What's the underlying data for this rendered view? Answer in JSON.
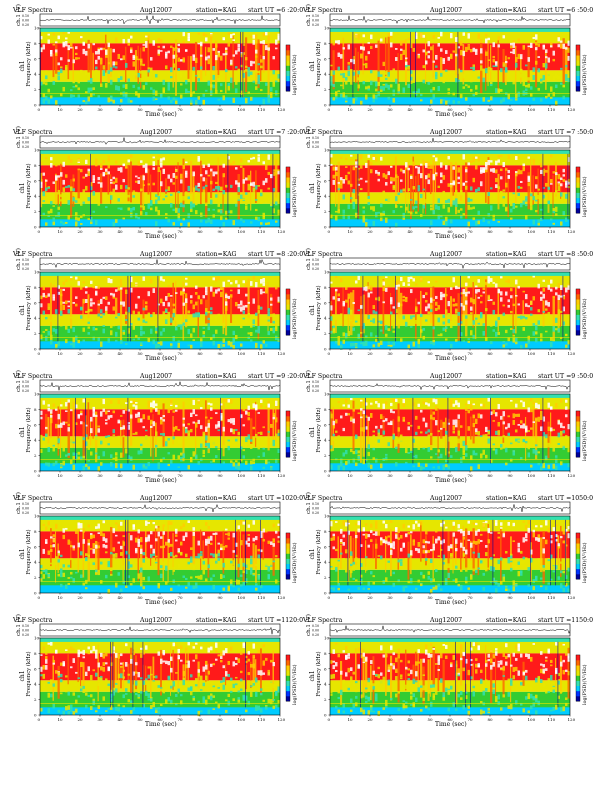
{
  "page": {
    "panels": [
      {
        "header": {
          "title": "VLF Spectra",
          "date": "Aug12007",
          "station": "station=KAG",
          "start": "start  UT  =6 :20:0"
        },
        "variant": 1
      },
      {
        "header": {
          "title": "VLF Spectra",
          "date": "Aug12007",
          "station": "station=KAG",
          "start": "start  UT  =6 :50:0"
        },
        "variant": 2
      },
      {
        "header": {
          "title": "VLF Spectra",
          "date": "Aug12007",
          "station": "station=KAG",
          "start": "start  UT  =7 :20:0"
        },
        "variant": 3
      },
      {
        "header": {
          "title": "VLF Spectra",
          "date": "Aug12007",
          "station": "station=KAG",
          "start": "start  UT  =7 :50:0"
        },
        "variant": 4
      },
      {
        "header": {
          "title": "VLF Spectra",
          "date": "Aug12007",
          "station": "station=KAG",
          "start": "start  UT  =8 :20:0"
        },
        "variant": 5
      },
      {
        "header": {
          "title": "VLF Spectra",
          "date": "Aug12007",
          "station": "station=KAG",
          "start": "start  UT  =8 :50:0"
        },
        "variant": 6
      },
      {
        "header": {
          "title": "VLF Spectra",
          "date": "Aug12007",
          "station": "station=KAG",
          "start": "start  UT  =9 :20:0"
        },
        "variant": 7
      },
      {
        "header": {
          "title": "VLF Spectra",
          "date": "Aug12007",
          "station": "station=KAG",
          "start": "start  UT  =9 :50:0"
        },
        "variant": 8
      },
      {
        "header": {
          "title": "VLF Spectra",
          "date": "Aug12007",
          "station": "station=KAG",
          "start": "start  UT  =1020:0"
        },
        "variant": 9
      },
      {
        "header": {
          "title": "VLF Spectra",
          "date": "Aug12007",
          "station": "station=KAG",
          "start": "start  UT  =1050:0"
        },
        "variant": 10
      },
      {
        "header": {
          "title": "VLF Spectra",
          "date": "Aug12007",
          "station": "station=KAG",
          "start": "start  UT  =1120:0"
        },
        "variant": 11
      },
      {
        "header": {
          "title": "VLF Spectra",
          "date": "Aug12007",
          "station": "station=KAG",
          "start": "start  UT  =1150:0"
        },
        "variant": 12
      }
    ],
    "labels": {
      "ch1_axis": "ch.1 (V)",
      "freq_axis_top": "ch1",
      "freq_axis": "Frequency  (kHz)",
      "time_axis": "Time  (sec)",
      "colorbar": "log(PSD)(V²/Hz)"
    },
    "colors": {
      "scale": [
        "#000099",
        "#0033ff",
        "#00ccff",
        "#33e0b0",
        "#33cc33",
        "#e6e600",
        "#ffcc00",
        "#ff6600",
        "#ff1a1a",
        "#ffffff"
      ]
    }
  },
  "chart_data": {
    "type": "heatmap",
    "description_units": "12 VLF spectrogram panels, each 120 s long; each shows channel-1 waveform amplitude and a frequency-time power spectrogram",
    "x": {
      "label": "Time  (sec)",
      "range": [
        0,
        120
      ],
      "ticks": [
        0,
        10,
        20,
        30,
        40,
        50,
        60,
        70,
        80,
        90,
        100,
        110,
        120
      ]
    },
    "ch1": {
      "label": "ch.1 (V)",
      "ticks": [
        "0.00",
        "0.20",
        "0.10"
      ]
    },
    "y": {
      "label": "Frequency  (kHz)",
      "range": [
        0,
        10
      ],
      "ticks": [
        0,
        2,
        4,
        6,
        8,
        10
      ]
    },
    "colorbar": {
      "label": "log(PSD)(V²/Hz)",
      "ticks": []
    },
    "bands_khz": [
      {
        "from": 9.5,
        "to": 10,
        "level": "low"
      },
      {
        "from": 8.0,
        "to": 9.5,
        "level": "mid"
      },
      {
        "from": 4.5,
        "to": 8.0,
        "level": "high"
      },
      {
        "from": 3.0,
        "to": 4.5,
        "level": "mid"
      },
      {
        "from": 0,
        "to": 3.0,
        "level": "low"
      }
    ],
    "grid": false,
    "legend": "right"
  }
}
